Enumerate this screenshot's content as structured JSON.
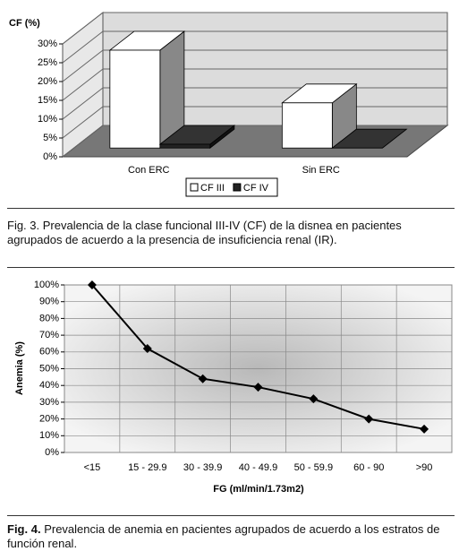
{
  "chart_data": [
    {
      "type": "bar3d",
      "y_label": "CF (%)",
      "categories": [
        "Con ERC",
        "Sin ERC"
      ],
      "series": [
        {
          "name": "CF III",
          "color": "#ffffff",
          "values": [
            26,
            12
          ]
        },
        {
          "name": "CF IV",
          "color": "#222222",
          "values": [
            1,
            0
          ]
        }
      ],
      "ylim": [
        0,
        30
      ],
      "yticks": [
        {
          "value": 0,
          "label": "0%"
        },
        {
          "value": 5,
          "label": "5%"
        },
        {
          "value": 10,
          "label": "10%"
        },
        {
          "value": 15,
          "label": "15%"
        },
        {
          "value": 20,
          "label": "20%"
        },
        {
          "value": 25,
          "label": "25%"
        },
        {
          "value": 30,
          "label": "30%"
        }
      ],
      "grid": true,
      "legend": "bottom",
      "caption": "Fig. 3. Prevalencia de la clase funcional III-IV (CF) de la disnea en pacientes agrupados de acuerdo a la presencia de insuficiencia renal (IR)."
    },
    {
      "type": "line",
      "y_label": "Anemia (%)",
      "x_label": "FG (ml/min/1.73m2)",
      "categories": [
        "<15",
        "15 - 29.9",
        "30 - 39.9",
        "40 - 49.9",
        "50 - 59.9",
        "60 - 90",
        ">90"
      ],
      "values": [
        100,
        62,
        44,
        39,
        32,
        20,
        14
      ],
      "color": "#000000",
      "ylim": [
        0,
        100
      ],
      "yticks": [
        {
          "value": 0,
          "label": "0%"
        },
        {
          "value": 10,
          "label": "10%"
        },
        {
          "value": 20,
          "label": "20%"
        },
        {
          "value": 30,
          "label": "30%"
        },
        {
          "value": 40,
          "label": "40%"
        },
        {
          "value": 50,
          "label": "50%"
        },
        {
          "value": 60,
          "label": "60%"
        },
        {
          "value": 70,
          "label": "70%"
        },
        {
          "value": 80,
          "label": "80%"
        },
        {
          "value": 90,
          "label": "90%"
        },
        {
          "value": 100,
          "label": "100%"
        }
      ],
      "grid": true,
      "caption_label": "Fig. 4.",
      "caption": "Prevalencia de anemia en pacientes agrupados de acuerdo a los estratos de función renal."
    }
  ]
}
